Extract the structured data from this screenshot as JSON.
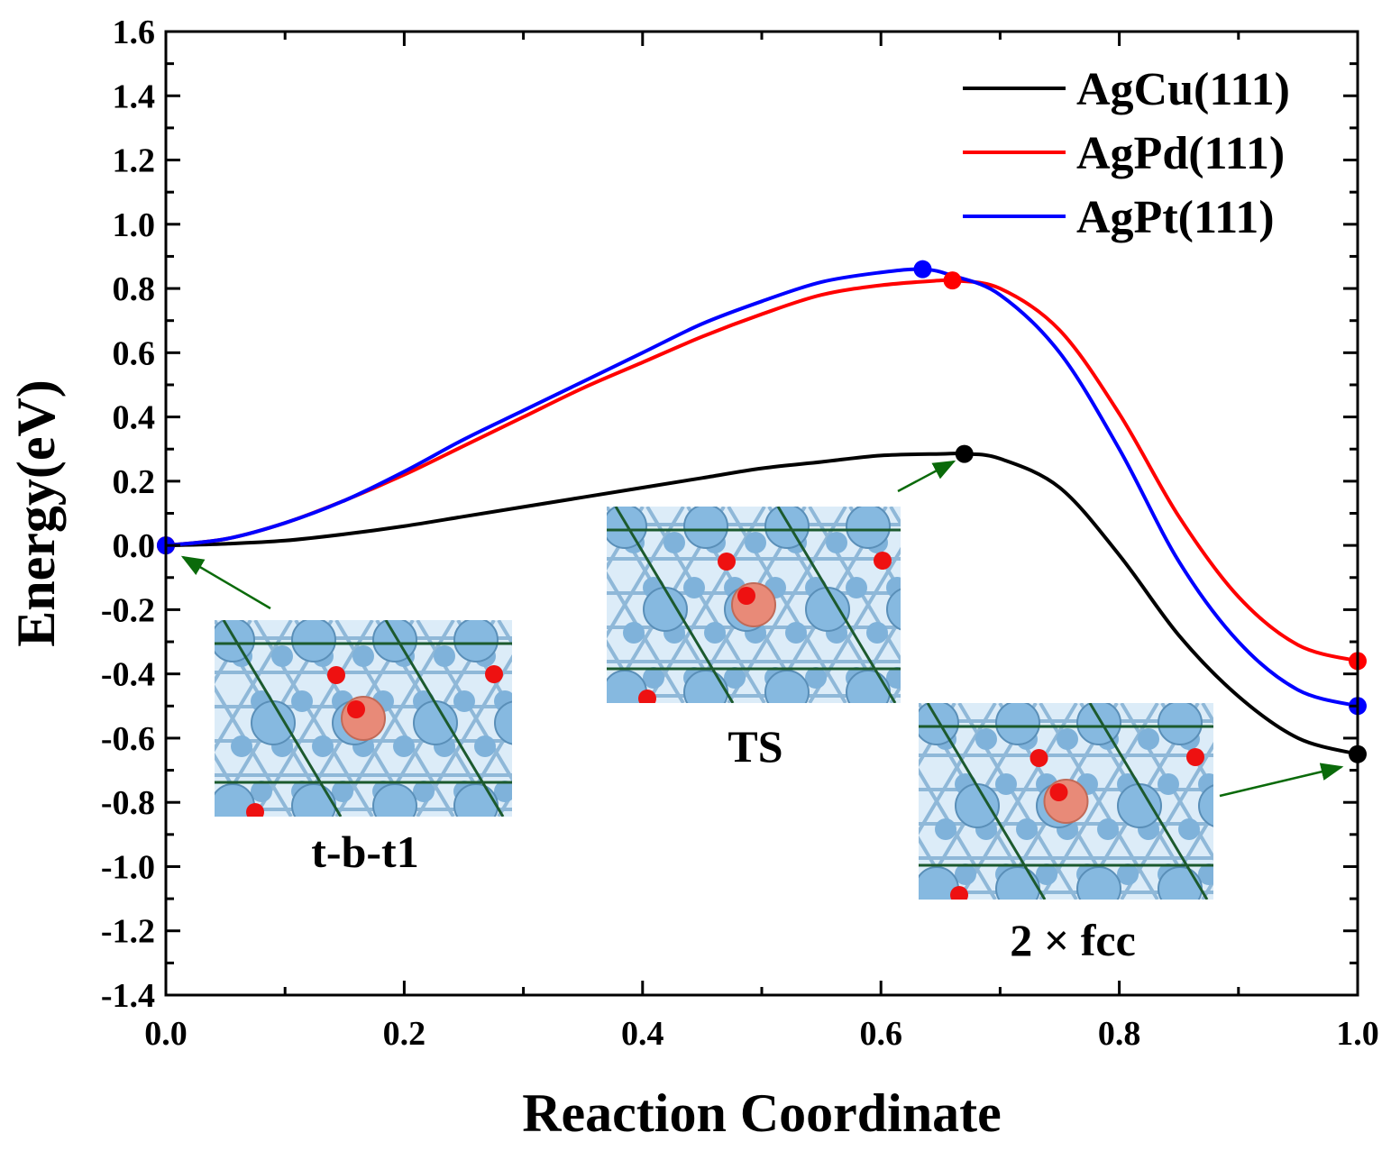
{
  "chart_data": {
    "type": "line",
    "xlabel": "Reaction Coordinate",
    "ylabel": "Energy(eV)",
    "xlim": [
      0.0,
      1.0
    ],
    "ylim": [
      -1.4,
      1.6
    ],
    "xticks": [
      "0.0",
      "0.2",
      "0.4",
      "0.6",
      "0.8",
      "1.0"
    ],
    "yticks": [
      "1.6",
      "1.4",
      "1.2",
      "1.0",
      "0.8",
      "0.6",
      "0.4",
      "0.2",
      "0.0",
      "-0.2",
      "-0.4",
      "-0.6",
      "-0.8",
      "-1.0",
      "-1.2",
      "-1.4"
    ],
    "legend_position": "top-right",
    "series": [
      {
        "name": "AgCu(111)",
        "color": "#000000",
        "x": [
          0.0,
          0.05,
          0.1,
          0.15,
          0.2,
          0.25,
          0.3,
          0.35,
          0.4,
          0.45,
          0.5,
          0.55,
          0.6,
          0.65,
          0.67,
          0.7,
          0.75,
          0.8,
          0.85,
          0.9,
          0.95,
          1.0
        ],
        "y": [
          0.0,
          0.005,
          0.015,
          0.035,
          0.06,
          0.09,
          0.12,
          0.15,
          0.18,
          0.21,
          0.24,
          0.26,
          0.28,
          0.285,
          0.285,
          0.27,
          0.18,
          -0.03,
          -0.28,
          -0.47,
          -0.6,
          -0.65
        ],
        "markers": [
          {
            "x": 0.0,
            "y": 0.0
          },
          {
            "x": 0.67,
            "y": 0.285
          },
          {
            "x": 1.0,
            "y": -0.65
          }
        ]
      },
      {
        "name": "AgPd(111)",
        "color": "#ff0000",
        "x": [
          0.0,
          0.05,
          0.1,
          0.15,
          0.2,
          0.25,
          0.3,
          0.35,
          0.4,
          0.45,
          0.5,
          0.55,
          0.6,
          0.65,
          0.66,
          0.7,
          0.75,
          0.8,
          0.85,
          0.9,
          0.95,
          1.0
        ],
        "y": [
          0.0,
          0.02,
          0.07,
          0.14,
          0.22,
          0.31,
          0.4,
          0.49,
          0.57,
          0.65,
          0.72,
          0.78,
          0.81,
          0.825,
          0.825,
          0.8,
          0.67,
          0.41,
          0.09,
          -0.16,
          -0.31,
          -0.36
        ],
        "markers": [
          {
            "x": 0.0,
            "y": 0.0
          },
          {
            "x": 0.66,
            "y": 0.825
          },
          {
            "x": 1.0,
            "y": -0.36
          }
        ]
      },
      {
        "name": "AgPt(111)",
        "color": "#0000ff",
        "x": [
          0.0,
          0.05,
          0.1,
          0.15,
          0.2,
          0.25,
          0.3,
          0.35,
          0.4,
          0.45,
          0.5,
          0.55,
          0.6,
          0.635,
          0.66,
          0.7,
          0.75,
          0.8,
          0.85,
          0.9,
          0.95,
          1.0
        ],
        "y": [
          0.0,
          0.02,
          0.07,
          0.14,
          0.23,
          0.33,
          0.42,
          0.51,
          0.6,
          0.69,
          0.76,
          0.82,
          0.85,
          0.86,
          0.84,
          0.78,
          0.6,
          0.3,
          -0.05,
          -0.3,
          -0.45,
          -0.5
        ],
        "markers": [
          {
            "x": 0.0,
            "y": 0.0
          },
          {
            "x": 0.635,
            "y": 0.86
          },
          {
            "x": 1.0,
            "y": -0.5
          }
        ]
      }
    ],
    "annotations": [
      {
        "text": "t-b-t1"
      },
      {
        "text": "TS"
      },
      {
        "text": "2 × fcc"
      }
    ]
  }
}
